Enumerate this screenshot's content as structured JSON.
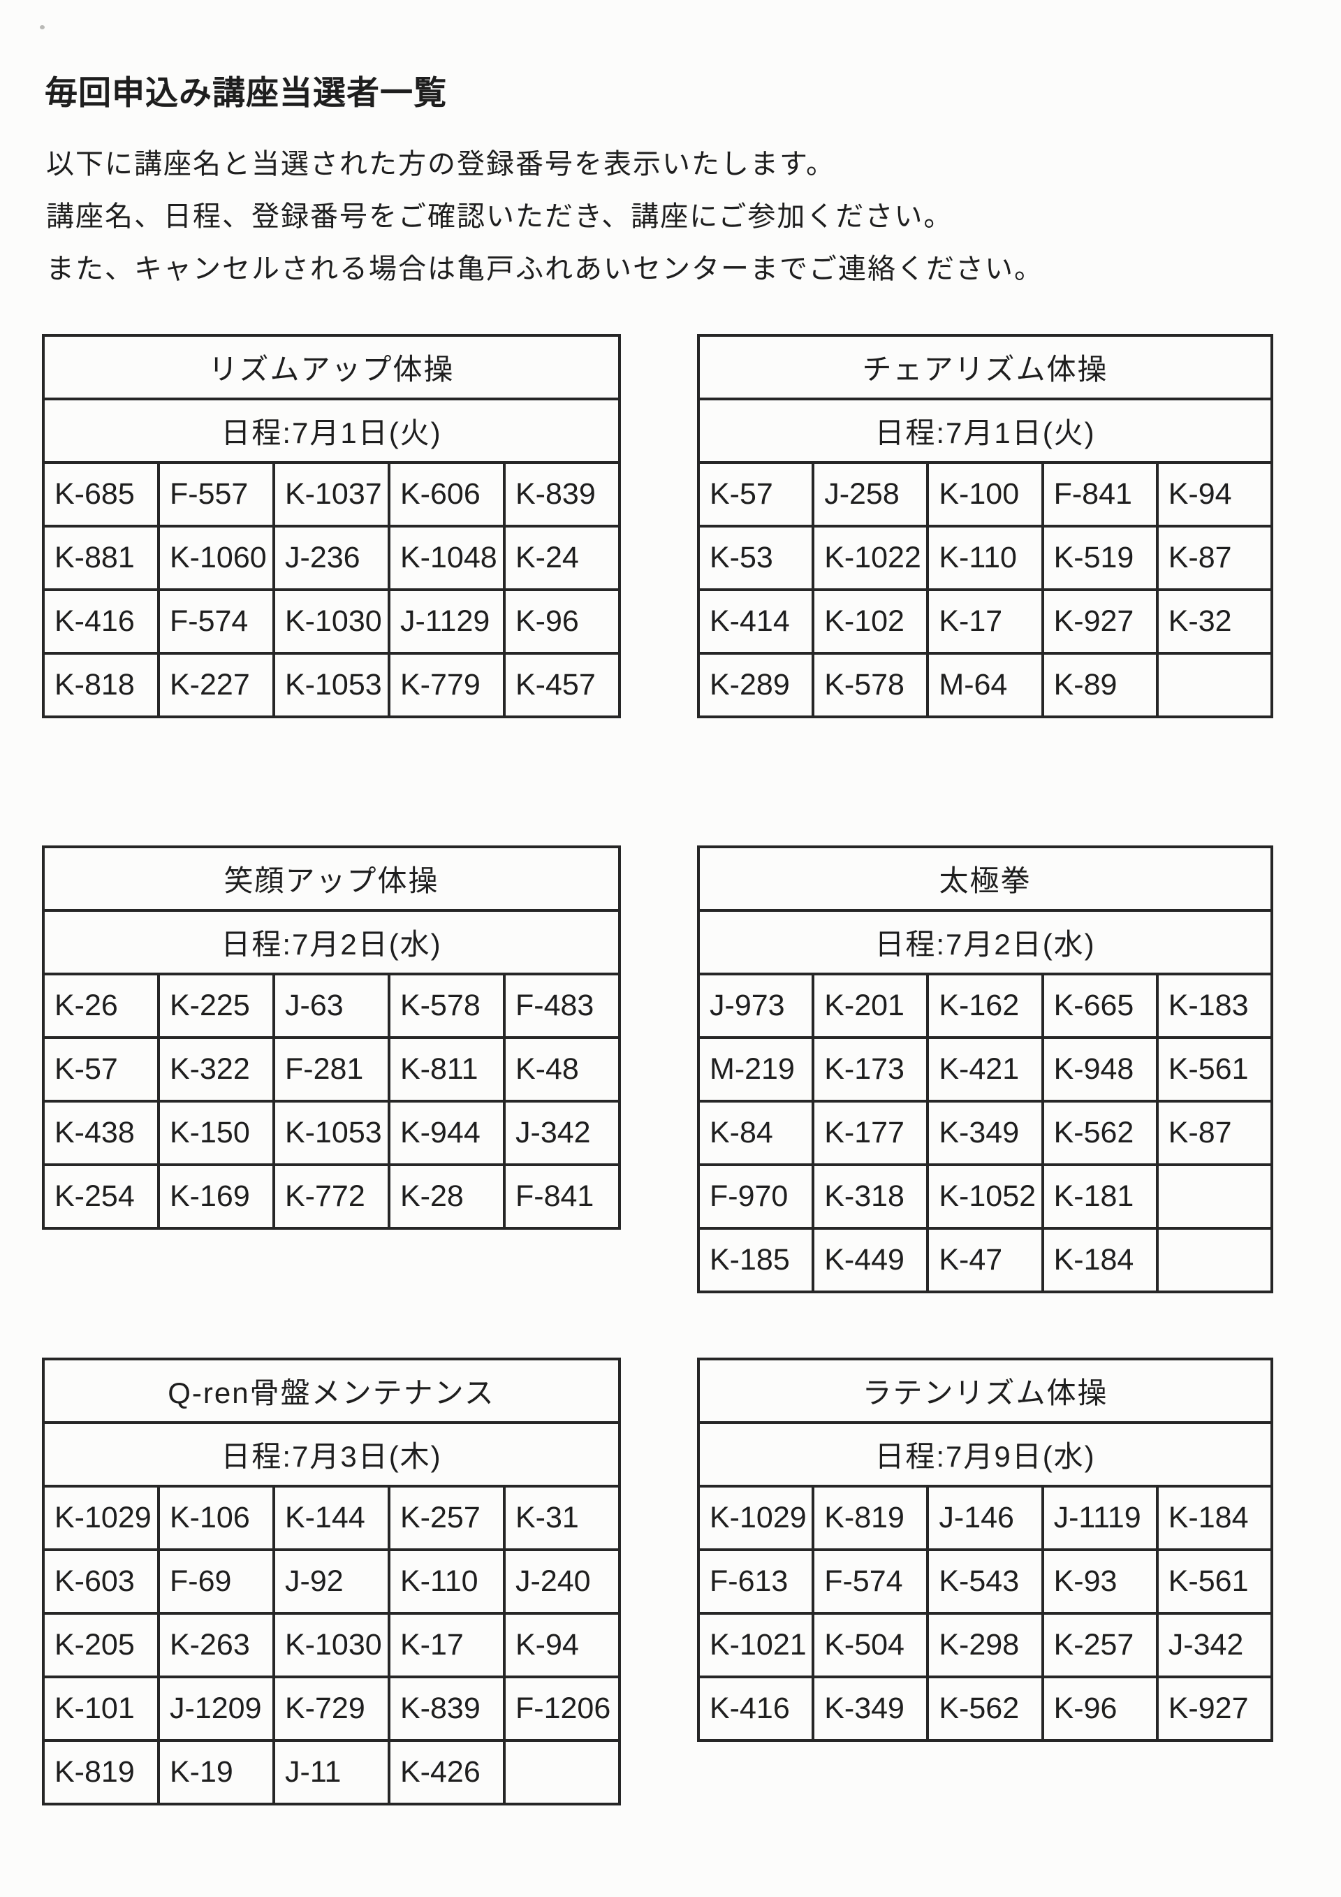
{
  "document": {
    "title": "毎回申込み講座当選者一覧",
    "intro_lines": [
      "以下に講座名と当選された方の登録番号を表示いたします。",
      "講座名、日程、登録番号をご確認いただき、講座にご参加ください。",
      "また、キャンセルされる場合は亀戸ふれあいセンターまでご連絡ください。"
    ]
  },
  "tables": [
    {
      "title": "リズムアップ体操",
      "date_label": "日程:7月1日(火)",
      "rows": [
        [
          "K-685",
          "F-557",
          "K-1037",
          "K-606",
          "K-839"
        ],
        [
          "K-881",
          "K-1060",
          "J-236",
          "K-1048",
          "K-24"
        ],
        [
          "K-416",
          "F-574",
          "K-1030",
          "J-1129",
          "K-96"
        ],
        [
          "K-818",
          "K-227",
          "K-1053",
          "K-779",
          "K-457"
        ]
      ]
    },
    {
      "title": "チェアリズム体操",
      "date_label": "日程:7月1日(火)",
      "rows": [
        [
          "K-57",
          "J-258",
          "K-100",
          "F-841",
          "K-94"
        ],
        [
          "K-53",
          "K-1022",
          "K-110",
          "K-519",
          "K-87"
        ],
        [
          "K-414",
          "K-102",
          "K-17",
          "K-927",
          "K-32"
        ],
        [
          "K-289",
          "K-578",
          "M-64",
          "K-89",
          ""
        ]
      ]
    },
    {
      "title": "笑顔アップ体操",
      "date_label": "日程:7月2日(水)",
      "rows": [
        [
          "K-26",
          "K-225",
          "J-63",
          "K-578",
          "F-483"
        ],
        [
          "K-57",
          "K-322",
          "F-281",
          "K-811",
          "K-48"
        ],
        [
          "K-438",
          "K-150",
          "K-1053",
          "K-944",
          "J-342"
        ],
        [
          "K-254",
          "K-169",
          "K-772",
          "K-28",
          "F-841"
        ]
      ]
    },
    {
      "title": "太極拳",
      "date_label": "日程:7月2日(水)",
      "rows": [
        [
          "J-973",
          "K-201",
          "K-162",
          "K-665",
          "K-183"
        ],
        [
          "M-219",
          "K-173",
          "K-421",
          "K-948",
          "K-561"
        ],
        [
          "K-84",
          "K-177",
          "K-349",
          "K-562",
          "K-87"
        ],
        [
          "F-970",
          "K-318",
          "K-1052",
          "K-181",
          ""
        ],
        [
          "K-185",
          "K-449",
          "K-47",
          "K-184",
          ""
        ]
      ]
    },
    {
      "title": "Q-ren骨盤メンテナンス",
      "date_label": "日程:7月3日(木)",
      "rows": [
        [
          "K-1029",
          "K-106",
          "K-144",
          "K-257",
          "K-31"
        ],
        [
          "K-603",
          "F-69",
          "J-92",
          "K-110",
          "J-240"
        ],
        [
          "K-205",
          "K-263",
          "K-1030",
          "K-17",
          "K-94"
        ],
        [
          "K-101",
          "J-1209",
          "K-729",
          "K-839",
          "F-1206"
        ],
        [
          "K-819",
          "K-19",
          "J-11",
          "K-426",
          ""
        ]
      ]
    },
    {
      "title": "ラテンリズム体操",
      "date_label": "日程:7月9日(水)",
      "rows": [
        [
          "K-1029",
          "K-819",
          "J-146",
          "J-1119",
          "K-184"
        ],
        [
          "F-613",
          "F-574",
          "K-543",
          "K-93",
          "K-561"
        ],
        [
          "K-1021",
          "K-504",
          "K-298",
          "K-257",
          "J-342"
        ],
        [
          "K-416",
          "K-349",
          "K-562",
          "K-96",
          "K-927"
        ]
      ]
    }
  ],
  "colors": {
    "text": "#1e1e1e",
    "border": "#262626",
    "page_background": "#fcfcfb"
  }
}
